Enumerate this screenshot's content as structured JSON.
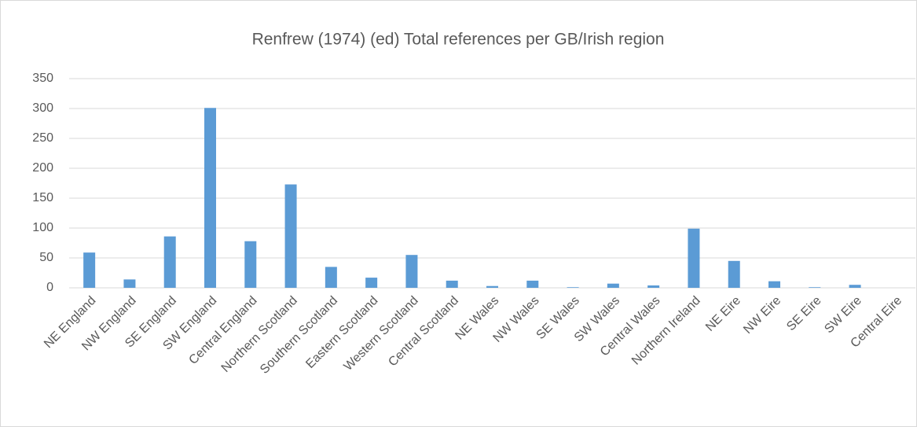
{
  "chart_data": {
    "type": "bar",
    "title": "Renfrew (1974) (ed) Total references per GB/Irish region",
    "categories": [
      "NE England",
      "NW England",
      "SE England",
      "SW England",
      "Central England",
      "Northern Scotland",
      "Southern Scotland",
      "Eastern Scotland",
      "Western Scotland",
      "Central Scotland",
      "NE Wales",
      "NW Wales",
      "SE Wales",
      "SW Wales",
      "Central Wales",
      "Northern Ireland",
      "NE Eire",
      "NW Eire",
      "SE Eire",
      "SW Eire",
      "Central Eire"
    ],
    "values": [
      59,
      14,
      86,
      301,
      78,
      173,
      35,
      17,
      55,
      12,
      3,
      12,
      1,
      7,
      4,
      99,
      45,
      11,
      1,
      5,
      0
    ],
    "color": "#5b9bd5",
    "ylim": [
      0,
      350
    ],
    "yticks": [
      0,
      50,
      100,
      150,
      200,
      250,
      300,
      350
    ],
    "grid": true
  }
}
